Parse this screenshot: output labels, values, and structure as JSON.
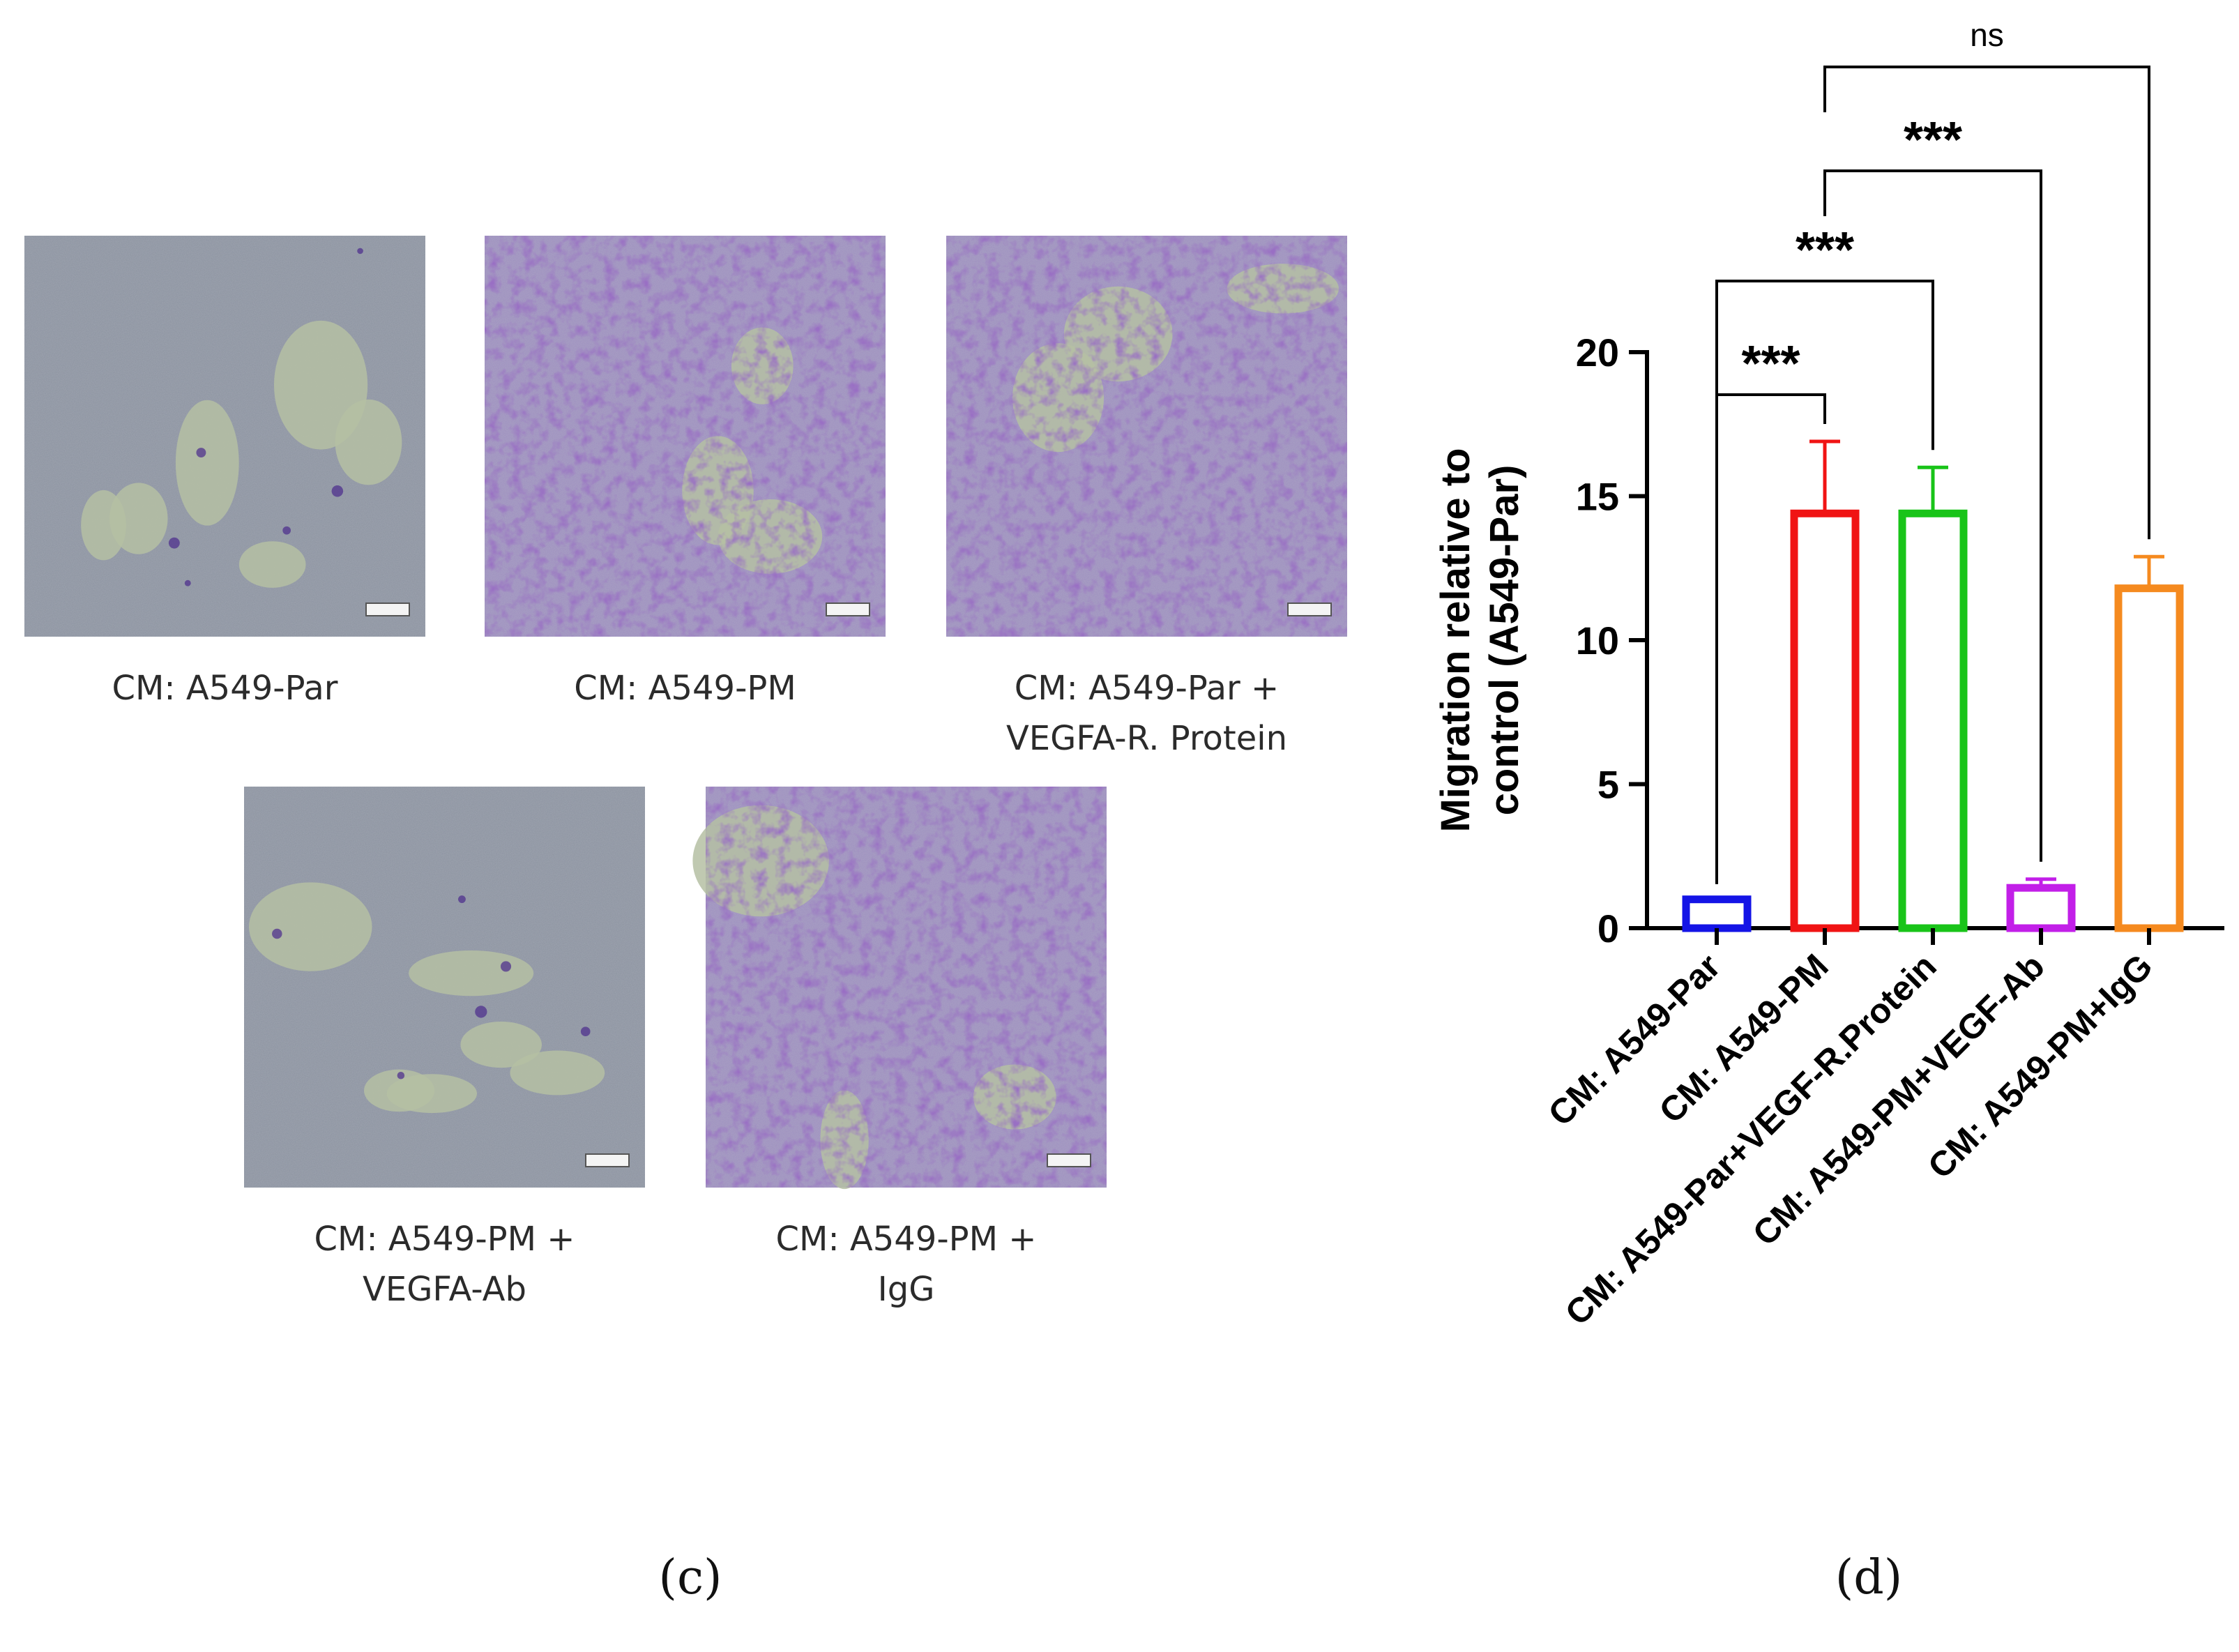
{
  "panel_c": {
    "letter": "(c)",
    "images": [
      {
        "caption_lines": [
          "CM: A549-Par"
        ],
        "stain": "light"
      },
      {
        "caption_lines": [
          "CM: A549-PM"
        ],
        "stain": "dense"
      },
      {
        "caption_lines": [
          "CM: A549-Par  +",
          "VEGFA-R. Protein"
        ],
        "stain": "dense"
      },
      {
        "caption_lines": [
          "CM: A549-PM      +",
          "VEGFA-Ab"
        ],
        "stain": "light"
      },
      {
        "caption_lines": [
          "CM: A549-PM      +",
          "IgG"
        ],
        "stain": "dense"
      }
    ],
    "colors": {
      "background_light": "#8c93a0",
      "background_dense": "#9e8fc0",
      "cell_stain": "#4a2a8c",
      "clear_patch": "#b5bfa3"
    }
  },
  "panel_d": {
    "letter": "(d)",
    "chart_data": {
      "type": "bar",
      "title": "",
      "xlabel": "",
      "ylabel_lines": [
        "Migration relative to",
        "control (A549-Par)"
      ],
      "ylim": [
        0,
        20
      ],
      "yticks": [
        0,
        5,
        10,
        15,
        20
      ],
      "categories": [
        "CM: A549-Par",
        "CM: A549-PM",
        "CM: A549-Par+VEGF-R.Protein",
        "CM: A549-PM+VEGF-Ab",
        "CM: A549-PM+IgG"
      ],
      "values": [
        1.0,
        14.4,
        14.4,
        1.4,
        11.8
      ],
      "errors": [
        0,
        2.5,
        1.6,
        0.3,
        1.1
      ],
      "bar_colors": [
        "#1414e6",
        "#f01414",
        "#19c419",
        "#c21fe8",
        "#f58a1f"
      ],
      "comparisons": [
        {
          "from": 0,
          "to": 1,
          "label": "***",
          "level": 0
        },
        {
          "from": 0,
          "to": 2,
          "label": "***",
          "level": 1
        },
        {
          "from": 1,
          "to": 3,
          "label": "***",
          "level": 2
        },
        {
          "from": 1,
          "to": 4,
          "label": "ns",
          "level": 3
        }
      ]
    }
  }
}
